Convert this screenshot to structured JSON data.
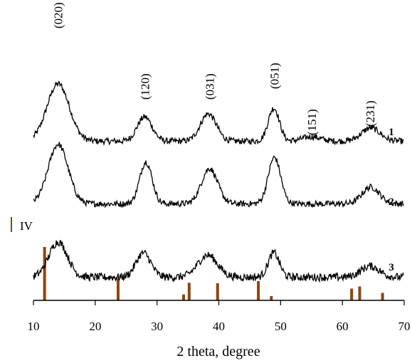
{
  "chart_data": {
    "type": "line",
    "title": "",
    "xlabel": "2 theta, degree",
    "ylabel": "",
    "xlim": [
      10,
      70
    ],
    "x_ticks": [
      10,
      20,
      30,
      40,
      50,
      60,
      70
    ],
    "grid": false,
    "legend": {
      "position": "left",
      "entries": [
        {
          "label": "IV",
          "color": "#8B4513"
        }
      ]
    },
    "peak_labels": [
      {
        "label": "(020)",
        "x": 14
      },
      {
        "label": "(120)",
        "x": 28
      },
      {
        "label": "(031)",
        "x": 38.5
      },
      {
        "label": "(051)",
        "x": 49
      },
      {
        "label": "(151)",
        "x": 55
      },
      {
        "label": "(231)",
        "x": 64.5
      }
    ],
    "series": [
      {
        "name": "1",
        "color": "#000000",
        "offset": 2.0,
        "peaks": [
          [
            14,
            1.3,
            1.8
          ],
          [
            28,
            0.55,
            1.2
          ],
          [
            38.3,
            0.62,
            1.3
          ],
          [
            48.9,
            0.75,
            0.9
          ],
          [
            55,
            0.1,
            1.5
          ],
          [
            64.6,
            0.3,
            1.5
          ]
        ],
        "baseline": 0.22,
        "noise": 0.07
      },
      {
        "name": "2",
        "color": "#000000",
        "offset": 1.0,
        "peaks": [
          [
            14,
            1.35,
            1.6
          ],
          [
            28.2,
            0.95,
            1.0
          ],
          [
            38.5,
            0.8,
            1.3
          ],
          [
            49,
            1.05,
            1.0
          ],
          [
            64.6,
            0.38,
            1.4
          ]
        ],
        "baseline": 0.22,
        "noise": 0.07
      },
      {
        "name": "3",
        "color": "#000000",
        "offset": 0.0,
        "peaks": [
          [
            14,
            0.8,
            1.5
          ],
          [
            27.8,
            0.55,
            1.2
          ],
          [
            38.2,
            0.5,
            1.6
          ],
          [
            48.9,
            0.55,
            0.9
          ],
          [
            64.5,
            0.25,
            1.5
          ]
        ],
        "baseline": 0.25,
        "noise": 0.09
      }
    ],
    "reference": {
      "name": "IV",
      "color": "#8B4513",
      "lines": [
        {
          "x": 11.8,
          "intensity": 1.0
        },
        {
          "x": 23.7,
          "intensity": 0.4
        },
        {
          "x": 34.3,
          "intensity": 0.11
        },
        {
          "x": 35.2,
          "intensity": 0.33
        },
        {
          "x": 39.8,
          "intensity": 0.32
        },
        {
          "x": 46.4,
          "intensity": 0.36
        },
        {
          "x": 48.5,
          "intensity": 0.08
        },
        {
          "x": 61.5,
          "intensity": 0.22
        },
        {
          "x": 62.8,
          "intensity": 0.26
        },
        {
          "x": 66.5,
          "intensity": 0.14
        }
      ]
    }
  }
}
